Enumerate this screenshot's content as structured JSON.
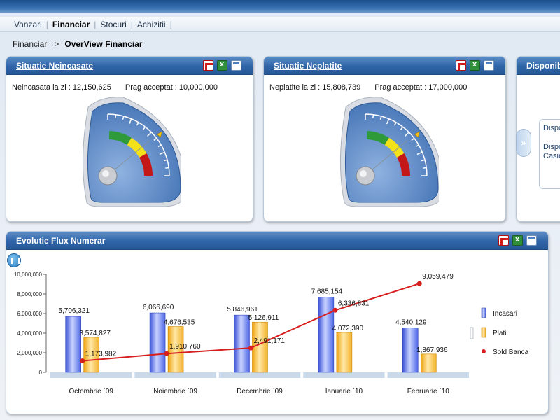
{
  "menu": [
    {
      "label": "Vanzari",
      "active": false
    },
    {
      "label": "Financiar",
      "active": true
    },
    {
      "label": "Stocuri",
      "active": false
    },
    {
      "label": "Achizitii",
      "active": false
    }
  ],
  "breadcrumb": {
    "root": "Financiar",
    "separator": ">",
    "current": "OverView Financiar"
  },
  "panel_neincasate": {
    "title": "Situatie Neincasate",
    "stat_left": "Neincasata la zi : 12,150,625",
    "stat_right": "Prag acceptat : 10,000,000"
  },
  "panel_neplatite": {
    "title": "Situatie Neplatite",
    "stat_left": "Neplatite la zi : 15,808,739",
    "stat_right": "Prag acceptat : 17,000,000"
  },
  "panel_disponibil": {
    "title": "Disponibi",
    "card_line1": "Dispo",
    "card_line2": "Dispo",
    "card_line3": "Casie",
    "expand_label": "»"
  },
  "panel_flux": {
    "title": "Evolutie Flux Numerar"
  },
  "icons": {
    "export_pdf": "pdf-icon",
    "export_excel": "excel-icon",
    "window": "window-icon",
    "chart_type": "chart-type-icon"
  },
  "colors": {
    "header_blue": "#2f65a8",
    "incasari": "#5577e8",
    "plati": "#f5b52a",
    "sold_banca": "#d81f1f"
  },
  "chart_data": {
    "type": "bar",
    "categories": [
      "Octombrie `09",
      "Noiembrie `09",
      "Decembrie `09",
      "Ianuarie `10",
      "Februarie `10"
    ],
    "series": [
      {
        "name": "Incasari",
        "type": "bar",
        "values": [
          5706321,
          6066690,
          5846961,
          7685154,
          4540129
        ],
        "labels": [
          "5,706,321",
          "6,066,690",
          "5,846,961",
          "7,685,154",
          "4,540,129"
        ]
      },
      {
        "name": "Plati",
        "type": "bar",
        "values": [
          3574827,
          4676535,
          5126911,
          4072390,
          1867936
        ],
        "labels": [
          "3,574,827",
          "4,676,535",
          "5,126,911",
          "4,072,390",
          "1,867,936"
        ]
      },
      {
        "name": "Sold Banca",
        "type": "line",
        "values": [
          1173982,
          1910760,
          2491171,
          6336831,
          9059479
        ],
        "labels": [
          "1,173,982",
          "1,910,760",
          "2,491,171",
          "6,336,831",
          "9,059,479"
        ]
      }
    ],
    "yticks": [
      "0",
      "2,000,000",
      "4,000,000",
      "6,000,000",
      "8,000,000",
      "10,000,000"
    ],
    "ylim": [
      0,
      10000000
    ],
    "legend": "right",
    "grid": false
  },
  "gauges": [
    {
      "name": "neincasate",
      "value": 12150625,
      "threshold": 10000000
    },
    {
      "name": "neplatite",
      "value": 15808739,
      "threshold": 17000000
    }
  ]
}
